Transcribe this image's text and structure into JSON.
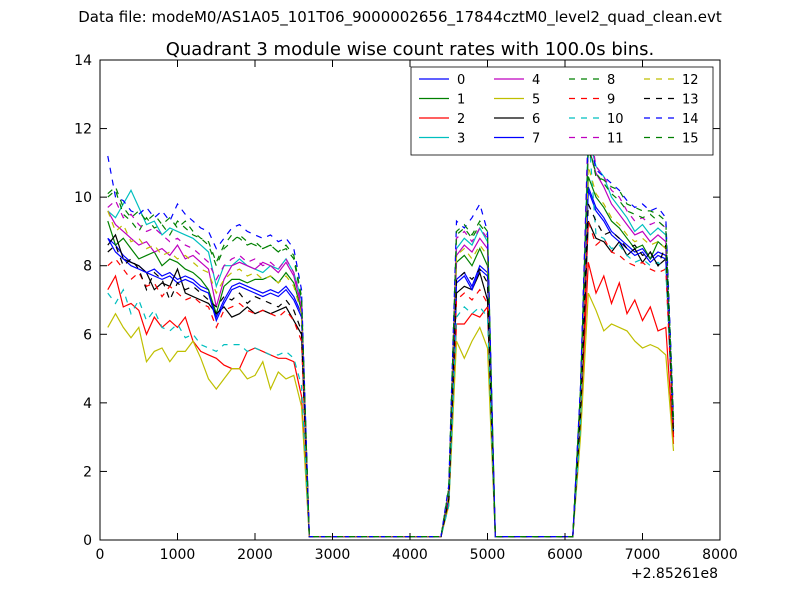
{
  "suptitle": "Data file: modeM0/AS1A05_101T06_9000002656_17844cztM0_level2_quad_clean.evt",
  "chart_data": {
    "type": "line",
    "title": "Quadrant 3 module wise count rates with 100.0s bins.",
    "xlabel": "",
    "ylabel": "",
    "x_offset_label": "+2.85261e8",
    "xlim": [
      0,
      8000
    ],
    "ylim": [
      0,
      14
    ],
    "xticks": [
      "0",
      "1000",
      "2000",
      "3000",
      "4000",
      "5000",
      "6000",
      "7000",
      "8000"
    ],
    "yticks": [
      "0",
      "2",
      "4",
      "6",
      "8",
      "10",
      "12",
      "14"
    ],
    "grid": false,
    "legend_position": "top-right",
    "legend_columns": 4,
    "segment_1": {
      "x": [
        100,
        200,
        300,
        400,
        500,
        600,
        700,
        800,
        900,
        1000,
        1100,
        1200,
        1300,
        1400,
        1500,
        1600,
        1700,
        1800,
        1900,
        2000,
        2100,
        2200,
        2300,
        2400,
        2500,
        2600,
        2700
      ],
      "drop_to_zero_at": 2700
    },
    "segment_2": {
      "x": [
        4400,
        4500,
        4600,
        4700,
        4800,
        4900,
        5000,
        5100
      ],
      "note": "burst"
    },
    "segment_3": {
      "x": [
        6100,
        6200,
        6300,
        6400,
        6500,
        6600,
        6700,
        6800,
        6900,
        7000,
        7100,
        7200,
        7300,
        7400
      ]
    },
    "series": [
      {
        "name": "0",
        "color": "#0000ff",
        "dash": "solid",
        "a": [
          8.8,
          8.6,
          8.3,
          8.1,
          8.0,
          7.8,
          7.9,
          7.7,
          7.8,
          7.6,
          7.7,
          7.6,
          7.4,
          7.3,
          6.5,
          7.0,
          7.4,
          7.5,
          7.4,
          7.3,
          7.2,
          7.3,
          7.2,
          7.4,
          7.1,
          6.6,
          0.1
        ],
        "b": [
          0.1,
          1.3,
          7.6,
          7.8,
          7.4,
          8.0,
          7.8,
          0.1
        ],
        "c": [
          0.1,
          4.0,
          10.3,
          9.7,
          9.4,
          9.0,
          8.8,
          8.6,
          8.4,
          8.5,
          8.2,
          8.4,
          8.3,
          3.2
        ]
      },
      {
        "name": "1",
        "color": "#008000",
        "dash": "solid",
        "a": [
          9.3,
          8.6,
          8.8,
          8.5,
          8.2,
          8.3,
          8.4,
          8.0,
          8.2,
          8.1,
          7.9,
          7.8,
          7.6,
          7.3,
          6.6,
          7.4,
          7.6,
          7.6,
          7.5,
          7.6,
          7.6,
          7.7,
          7.5,
          7.8,
          7.5,
          6.7,
          0.1
        ],
        "b": [
          0.1,
          1.3,
          8.1,
          8.3,
          8.0,
          8.5,
          8.0,
          0.1
        ],
        "c": [
          0.1,
          4.0,
          10.6,
          10.0,
          9.7,
          9.3,
          9.1,
          8.8,
          8.5,
          8.6,
          8.2,
          8.7,
          8.5,
          3.0
        ]
      },
      {
        "name": "2",
        "color": "#ff0000",
        "dash": "solid",
        "a": [
          7.3,
          7.7,
          6.8,
          6.9,
          6.7,
          6.0,
          6.5,
          6.2,
          6.4,
          6.2,
          6.5,
          5.8,
          5.5,
          5.4,
          5.3,
          5.1,
          5.0,
          5.0,
          5.5,
          5.6,
          5.5,
          5.4,
          5.3,
          5.3,
          5.2,
          4.2,
          0.1
        ],
        "b": [
          0.1,
          1.2,
          6.3,
          6.3,
          6.6,
          6.5,
          6.8,
          0.1
        ],
        "c": [
          0.1,
          3.5,
          8.1,
          7.2,
          7.7,
          6.9,
          7.5,
          6.6,
          7.0,
          6.4,
          6.8,
          6.1,
          6.2,
          2.8
        ]
      },
      {
        "name": "3",
        "color": "#00bfbf",
        "dash": "solid",
        "a": [
          9.6,
          9.4,
          9.8,
          10.2,
          9.7,
          9.2,
          9.3,
          8.9,
          9.1,
          9.0,
          8.9,
          8.8,
          8.6,
          8.4,
          7.4,
          8.0,
          8.0,
          8.2,
          8.0,
          7.9,
          7.8,
          8.0,
          7.9,
          8.2,
          7.8,
          7.0,
          0.1
        ],
        "b": [
          0.1,
          1.5,
          8.5,
          8.8,
          8.6,
          9.1,
          8.7,
          0.1
        ],
        "c": [
          0.1,
          4.3,
          11.8,
          10.9,
          10.6,
          10.0,
          9.7,
          9.4,
          9.0,
          9.2,
          8.9,
          9.1,
          8.9,
          3.4
        ]
      },
      {
        "name": "4",
        "color": "#bf00bf",
        "dash": "solid",
        "a": [
          9.6,
          9.2,
          9.0,
          8.8,
          8.6,
          8.7,
          8.4,
          8.5,
          8.3,
          8.6,
          8.2,
          8.3,
          8.1,
          7.9,
          6.8,
          7.6,
          8.0,
          8.1,
          8.0,
          7.9,
          8.1,
          8.0,
          7.8,
          8.1,
          7.7,
          6.8,
          0.1
        ],
        "b": [
          0.1,
          1.4,
          8.3,
          8.6,
          8.4,
          8.8,
          8.5,
          0.1
        ],
        "c": [
          0.1,
          4.2,
          11.5,
          10.7,
          10.3,
          9.8,
          9.5,
          9.2,
          8.9,
          9.0,
          8.7,
          8.9,
          8.7,
          3.3
        ]
      },
      {
        "name": "5",
        "color": "#bfbf00",
        "dash": "solid",
        "a": [
          6.2,
          6.6,
          6.2,
          5.9,
          6.2,
          5.2,
          5.5,
          5.6,
          5.2,
          5.5,
          5.5,
          5.8,
          5.3,
          4.7,
          4.4,
          4.7,
          5.0,
          5.0,
          4.7,
          4.8,
          5.2,
          4.4,
          4.9,
          4.7,
          4.8,
          3.9,
          0.1
        ],
        "b": [
          0.1,
          1.0,
          5.8,
          5.3,
          5.8,
          6.2,
          5.6,
          0.1
        ],
        "c": [
          0.1,
          3.0,
          7.2,
          6.7,
          6.1,
          6.3,
          6.2,
          6.1,
          5.8,
          5.6,
          5.7,
          5.6,
          5.4,
          2.6
        ]
      },
      {
        "name": "6",
        "color": "#000000",
        "dash": "solid",
        "a": [
          8.6,
          8.9,
          8.2,
          8.1,
          8.0,
          7.8,
          7.3,
          7.5,
          7.4,
          7.9,
          7.2,
          7.1,
          7.0,
          6.9,
          6.6,
          6.8,
          6.5,
          6.6,
          6.8,
          6.6,
          6.7,
          6.6,
          6.7,
          6.8,
          6.4,
          6.0,
          0.1
        ],
        "b": [
          0.1,
          1.2,
          7.2,
          7.4,
          7.3,
          7.8,
          7.0,
          0.1
        ],
        "c": [
          0.1,
          3.6,
          9.3,
          8.8,
          8.7,
          8.4,
          8.7,
          8.3,
          8.5,
          8.1,
          8.4,
          8.0,
          8.2,
          3.1
        ]
      },
      {
        "name": "7",
        "color": "#0000ff",
        "dash": "solid",
        "a": [
          8.8,
          8.4,
          8.2,
          8.0,
          7.9,
          7.8,
          7.7,
          7.6,
          7.7,
          7.5,
          7.6,
          7.5,
          7.3,
          7.2,
          6.4,
          6.9,
          7.3,
          7.4,
          7.3,
          7.2,
          7.1,
          7.2,
          7.1,
          7.3,
          7.0,
          6.5,
          0.1
        ],
        "b": [
          0.1,
          1.3,
          7.5,
          7.7,
          7.3,
          7.9,
          7.7,
          0.1
        ],
        "c": [
          0.1,
          4.0,
          10.2,
          9.6,
          9.3,
          8.9,
          8.7,
          8.5,
          8.3,
          8.4,
          8.1,
          8.3,
          8.2,
          3.2
        ]
      },
      {
        "name": "8",
        "color": "#008000",
        "dash": "dashed",
        "a": [
          10.0,
          10.2,
          9.5,
          9.3,
          9.0,
          9.4,
          9.1,
          9.2,
          8.9,
          9.3,
          9.1,
          8.9,
          8.8,
          8.6,
          8.0,
          8.5,
          8.7,
          8.9,
          8.7,
          8.6,
          8.5,
          8.6,
          8.4,
          8.5,
          8.2,
          7.0,
          0.1
        ],
        "b": [
          0.1,
          1.5,
          8.9,
          9.1,
          8.8,
          9.2,
          8.9,
          0.1
        ],
        "c": [
          0.1,
          4.4,
          11.6,
          10.6,
          10.5,
          10.3,
          10.2,
          9.8,
          9.7,
          9.6,
          9.6,
          9.5,
          9.3,
          3.5
        ]
      },
      {
        "name": "9",
        "color": "#ff0000",
        "dash": "dashed",
        "a": [
          8.0,
          8.2,
          7.9,
          7.6,
          7.8,
          7.4,
          7.5,
          7.1,
          7.4,
          7.2,
          7.0,
          7.1,
          6.9,
          6.8,
          6.2,
          6.7,
          6.8,
          6.9,
          6.7,
          6.6,
          6.7,
          6.6,
          6.5,
          6.7,
          6.4,
          5.8,
          0.1
        ],
        "b": [
          0.1,
          1.1,
          7.0,
          7.2,
          7.0,
          7.3,
          6.9,
          0.1
        ],
        "c": [
          0.1,
          3.7,
          9.3,
          8.6,
          8.8,
          8.4,
          8.3,
          8.1,
          8.0,
          8.1,
          7.9,
          7.8,
          7.9,
          3.0
        ]
      },
      {
        "name": "10",
        "color": "#00bfbf",
        "dash": "dashed",
        "a": [
          7.2,
          6.9,
          7.3,
          6.6,
          7.0,
          6.4,
          6.7,
          6.2,
          6.1,
          6.3,
          5.9,
          6.0,
          5.7,
          5.6,
          5.5,
          5.7,
          5.7,
          5.7,
          5.5,
          5.6,
          5.5,
          5.4,
          5.4,
          5.5,
          5.3,
          4.5,
          0.1
        ],
        "b": [
          0.1,
          1.0,
          6.5,
          6.8,
          6.6,
          6.8,
          6.5,
          0.1
        ],
        "c": [
          0.1,
          3.3,
          12.0,
          8.9,
          8.8,
          8.5,
          8.6,
          8.3,
          8.1,
          8.2,
          8.0,
          8.1,
          7.9,
          3.1
        ]
      },
      {
        "name": "11",
        "color": "#bf00bf",
        "dash": "dashed",
        "a": [
          9.7,
          9.9,
          9.4,
          9.5,
          9.2,
          9.0,
          9.1,
          8.9,
          8.7,
          8.8,
          8.6,
          8.5,
          8.3,
          8.1,
          7.6,
          8.0,
          8.2,
          8.3,
          8.1,
          8.2,
          8.0,
          8.1,
          7.9,
          8.2,
          7.8,
          6.9,
          0.1
        ],
        "b": [
          0.1,
          1.4,
          8.8,
          9.0,
          8.7,
          9.1,
          8.8,
          0.1
        ],
        "c": [
          0.1,
          4.3,
          12.3,
          10.9,
          10.6,
          10.2,
          10.0,
          9.6,
          9.3,
          9.4,
          9.2,
          9.3,
          9.1,
          3.4
        ]
      },
      {
        "name": "12",
        "color": "#bfbf00",
        "dash": "dashed",
        "a": [
          9.6,
          9.0,
          9.2,
          8.7,
          8.8,
          8.5,
          8.6,
          8.3,
          8.4,
          8.2,
          8.3,
          8.1,
          7.9,
          7.8,
          7.2,
          7.6,
          7.8,
          7.9,
          7.7,
          7.8,
          7.6,
          7.7,
          7.5,
          7.7,
          7.4,
          6.6,
          0.1
        ],
        "b": [
          0.1,
          1.3,
          8.3,
          8.5,
          8.2,
          8.6,
          8.3,
          0.1
        ],
        "c": [
          0.1,
          4.1,
          10.9,
          10.1,
          9.8,
          9.4,
          9.2,
          8.9,
          8.7,
          8.8,
          8.6,
          8.7,
          8.5,
          3.3
        ]
      },
      {
        "name": "13",
        "color": "#000000",
        "dash": "dashed",
        "a": [
          8.4,
          8.6,
          8.0,
          8.2,
          7.9,
          7.3,
          7.8,
          7.6,
          7.0,
          7.5,
          7.3,
          7.4,
          7.2,
          7.0,
          6.8,
          7.1,
          7.0,
          7.2,
          6.9,
          7.1,
          7.0,
          6.9,
          6.8,
          7.0,
          6.7,
          6.1,
          0.1
        ],
        "b": [
          0.1,
          1.2,
          7.6,
          7.8,
          7.6,
          7.9,
          7.5,
          0.1
        ],
        "c": [
          0.1,
          3.9,
          9.8,
          9.3,
          8.9,
          9.0,
          8.8,
          8.5,
          8.6,
          8.3,
          8.4,
          8.0,
          8.6,
          3.1
        ]
      },
      {
        "name": "14",
        "color": "#0000ff",
        "dash": "dashed",
        "a": [
          11.2,
          10.0,
          9.9,
          9.6,
          9.5,
          9.7,
          9.4,
          9.6,
          9.3,
          9.8,
          9.5,
          9.3,
          9.1,
          9.0,
          8.5,
          8.8,
          9.1,
          9.2,
          9.0,
          8.9,
          8.8,
          8.9,
          8.7,
          8.8,
          8.5,
          7.3,
          0.1
        ],
        "b": [
          0.1,
          1.6,
          9.3,
          9.1,
          9.4,
          9.8,
          9.0,
          0.1
        ],
        "c": [
          0.1,
          4.5,
          11.9,
          10.8,
          10.6,
          10.4,
          10.2,
          9.9,
          9.7,
          9.8,
          9.6,
          9.7,
          9.4,
          3.6
        ]
      },
      {
        "name": "15",
        "color": "#008000",
        "dash": "dashed",
        "a": [
          10.1,
          10.3,
          9.7,
          9.4,
          9.6,
          9.3,
          9.5,
          9.2,
          9.4,
          9.1,
          9.3,
          9.0,
          8.8,
          8.7,
          8.1,
          8.6,
          8.9,
          8.8,
          8.6,
          8.7,
          8.5,
          8.6,
          8.4,
          8.6,
          8.3,
          7.1,
          0.1
        ],
        "b": [
          0.1,
          1.5,
          9.0,
          9.2,
          8.9,
          9.3,
          9.0,
          0.1
        ],
        "c": [
          0.1,
          4.4,
          11.4,
          10.7,
          10.4,
          10.1,
          9.9,
          9.6,
          9.5,
          9.4,
          9.5,
          9.3,
          9.1,
          3.5
        ]
      }
    ]
  }
}
